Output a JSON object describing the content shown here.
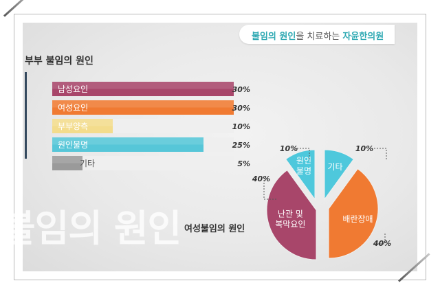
{
  "header": {
    "banner_part1": "불임의 원인",
    "banner_part2": "을 치료하는 ",
    "banner_part3": "자윤한의원"
  },
  "watermark": "불임의 원인",
  "chart_data": [
    {
      "type": "bar",
      "title": "부부 불임의 원인",
      "orientation": "horizontal",
      "categories": [
        "남성요인",
        "여성요인",
        "부부양측",
        "원인불명",
        "기타"
      ],
      "values": [
        30,
        30,
        10,
        25,
        5
      ],
      "value_labels": [
        "30%",
        "30%",
        "10%",
        "25%",
        "5%"
      ],
      "colors": [
        "#a8466a",
        "#f07a32",
        "#f3dc8c",
        "#56c6d8",
        "#9a9a9a"
      ],
      "xlim": [
        0,
        30
      ]
    },
    {
      "type": "pie",
      "title": "여성불임의 원인",
      "categories": [
        "기타",
        "배란장애",
        "난관 및 복막요인",
        "원인 불명"
      ],
      "display_labels": [
        [
          "기타"
        ],
        [
          "배란장애"
        ],
        [
          "난관 및",
          "복막요인"
        ],
        [
          "원인",
          "불명"
        ]
      ],
      "values": [
        10,
        40,
        40,
        10
      ],
      "value_labels": [
        "10%",
        "40%",
        "40%",
        "10%"
      ],
      "colors": [
        "#4ec8dc",
        "#f07a32",
        "#a8466a",
        "#4ec8dc"
      ]
    }
  ]
}
